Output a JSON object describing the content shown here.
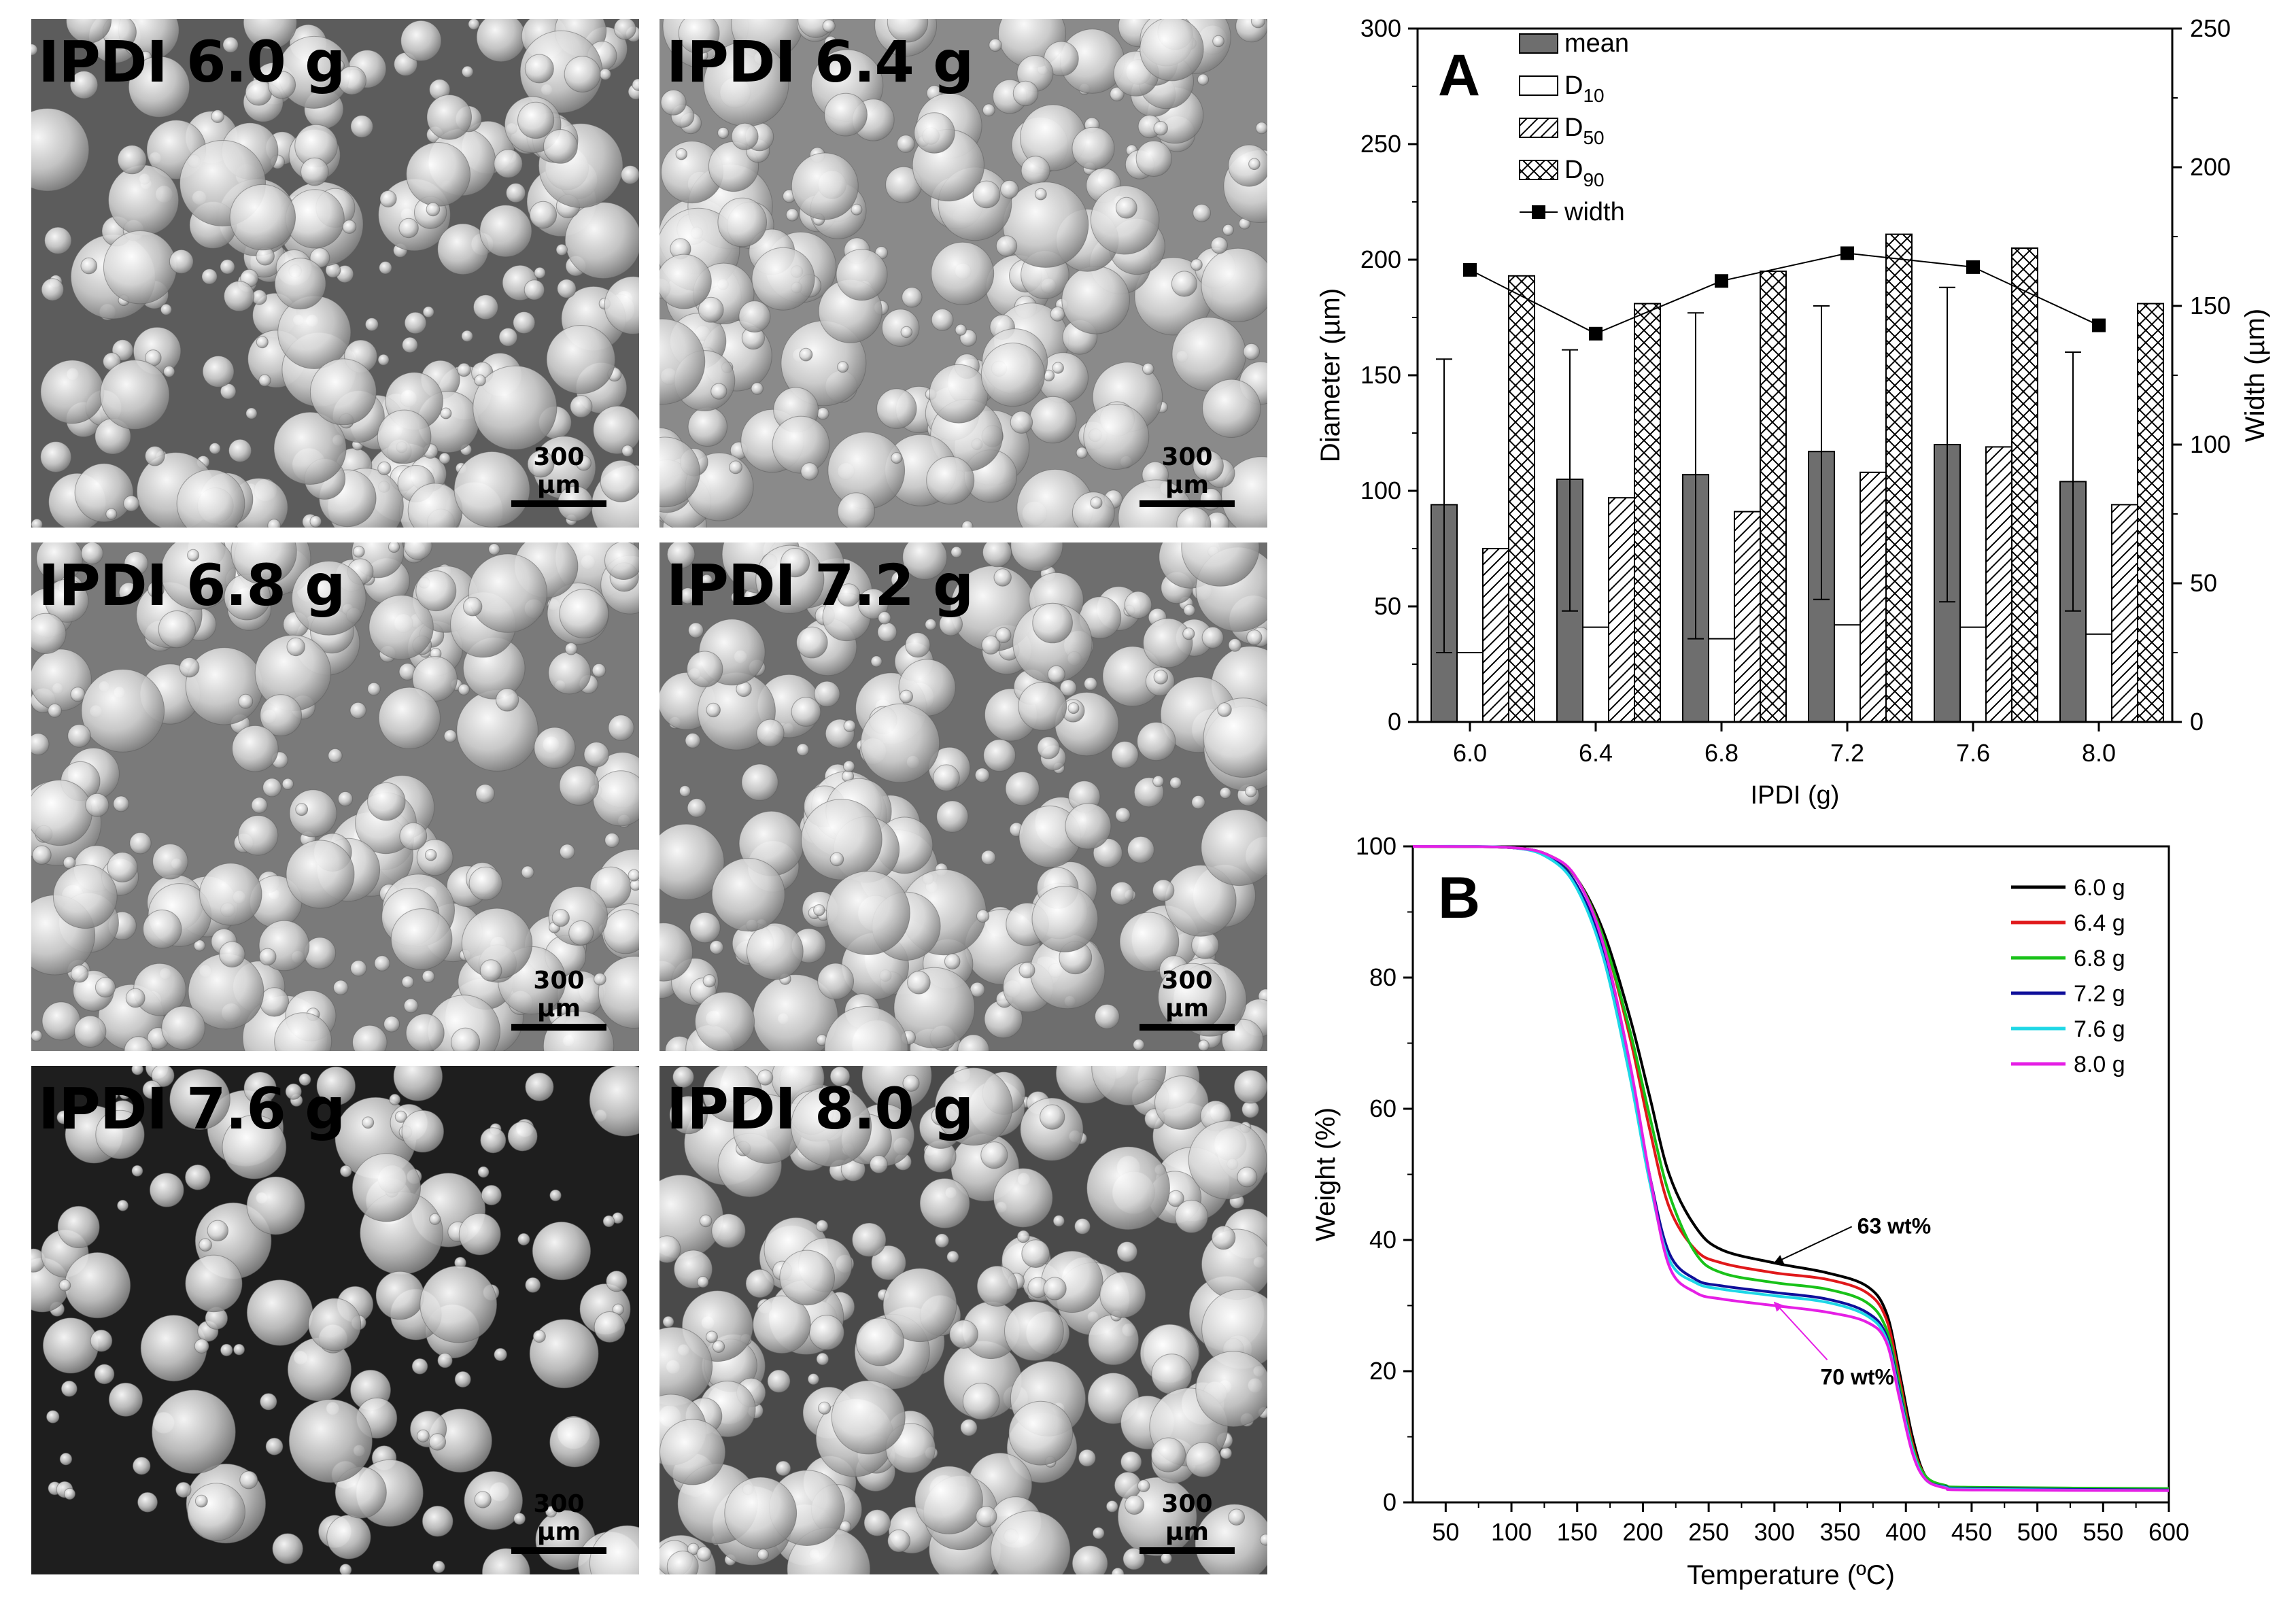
{
  "micrographs": [
    {
      "label": "IPDI 6.0 g",
      "scale": "300 µm",
      "background": "#5c5c5c",
      "seed": 11
    },
    {
      "label": "IPDI 6.4 g",
      "scale": "300 µm",
      "background": "#8a8a8a",
      "seed": 23
    },
    {
      "label": "IPDI 6.8 g",
      "scale": "300 µm",
      "background": "#7a7a7a",
      "seed": 37
    },
    {
      "label": "IPDI 7.2 g",
      "scale": "300 µm",
      "background": "#6e6e6e",
      "seed": 41
    },
    {
      "label": "IPDI 7.6 g",
      "scale": "300 µm",
      "background": "#1e1e1e",
      "seed": 59
    },
    {
      "label": "IPDI 8.0 g",
      "scale": "300 µm",
      "background": "#4a4a4a",
      "seed": 67
    }
  ],
  "chart_data": [
    {
      "panel": "A",
      "type": "bar",
      "xlabel": "IPDI (g)",
      "ylabel": "Diameter (µm)",
      "y2label": "Width (µm)",
      "ylim": [
        0,
        300
      ],
      "y2lim": [
        0,
        250
      ],
      "yticks": [
        "0",
        "50",
        "100",
        "150",
        "200",
        "250",
        "300"
      ],
      "y2ticks": [
        "0",
        "50",
        "100",
        "150",
        "200",
        "250"
      ],
      "categories": [
        "6.0",
        "6.4",
        "6.8",
        "7.2",
        "7.6",
        "8.0"
      ],
      "series": [
        {
          "name": "mean",
          "values": [
            94,
            105,
            107,
            117,
            120,
            104
          ],
          "error_upper": [
            157,
            161,
            177,
            180,
            188,
            160
          ],
          "error_lower": [
            30,
            48,
            36,
            53,
            52,
            48
          ],
          "fill": "#6e6e6e"
        },
        {
          "name": "D10",
          "label_base": "D",
          "label_sub": "10",
          "values": [
            30,
            41,
            36,
            42,
            41,
            38
          ],
          "fill": "none"
        },
        {
          "name": "D50",
          "label_base": "D",
          "label_sub": "50",
          "values": [
            75,
            97,
            91,
            108,
            119,
            94
          ],
          "fill": "hatch"
        },
        {
          "name": "D90",
          "label_base": "D",
          "label_sub": "90",
          "values": [
            193,
            181,
            195,
            211,
            205,
            181
          ],
          "fill": "crosshatch"
        }
      ],
      "line_series": {
        "name": "width",
        "axis": "right",
        "values": [
          163,
          140,
          159,
          169,
          164,
          143
        ]
      }
    },
    {
      "panel": "B",
      "type": "line",
      "xlabel": "Temperature (ºC)",
      "ylabel": "Weight (%)",
      "xlim": [
        25,
        600
      ],
      "ylim": [
        0,
        100
      ],
      "xticks": [
        "50",
        "100",
        "150",
        "200",
        "250",
        "300",
        "350",
        "400",
        "450",
        "500",
        "550",
        "600"
      ],
      "yticks": [
        "0",
        "20",
        "40",
        "60",
        "80",
        "100"
      ],
      "series": [
        {
          "name": "6.0 g",
          "color": "#000000",
          "x": [
            25,
            100,
            130,
            150,
            170,
            190,
            205,
            220,
            240,
            260,
            300,
            340,
            370,
            385,
            395,
            405,
            415,
            430,
            450,
            600
          ],
          "y": [
            100,
            99.8,
            98.5,
            95,
            87,
            74,
            62,
            50,
            42,
            38.5,
            36.5,
            35,
            33,
            29,
            20,
            10,
            4,
            2.5,
            2.2,
            2
          ]
        },
        {
          "name": "6.4 g",
          "color": "#e0191b",
          "x": [
            25,
            100,
            130,
            150,
            170,
            190,
            205,
            220,
            240,
            260,
            300,
            340,
            370,
            385,
            395,
            405,
            415,
            430,
            450,
            600
          ],
          "y": [
            100,
            99.8,
            98.5,
            95,
            86,
            71,
            57,
            45,
            38.5,
            36.5,
            35,
            34,
            32,
            28,
            19,
            9,
            4,
            2.5,
            2.2,
            2
          ]
        },
        {
          "name": "6.8 g",
          "color": "#19c219",
          "x": [
            25,
            100,
            130,
            150,
            170,
            190,
            205,
            220,
            240,
            260,
            300,
            340,
            370,
            385,
            395,
            405,
            415,
            430,
            450,
            600
          ],
          "y": [
            100,
            99.8,
            98.5,
            95,
            86,
            72,
            59,
            47,
            38,
            35,
            33.5,
            32.5,
            30.5,
            26.5,
            18,
            8.5,
            4,
            2.6,
            2.3,
            2.1
          ]
        },
        {
          "name": "7.2 g",
          "color": "#0f0f9a",
          "x": [
            25,
            100,
            130,
            150,
            170,
            190,
            205,
            220,
            240,
            260,
            300,
            340,
            370,
            385,
            395,
            405,
            415,
            430,
            450,
            600
          ],
          "y": [
            100,
            99.8,
            98.2,
            94,
            84,
            66,
            50,
            38,
            34,
            33,
            32,
            31,
            29,
            25.5,
            17,
            8,
            3.5,
            2.4,
            2.1,
            1.9
          ]
        },
        {
          "name": "7.6 g",
          "color": "#1ed7e6",
          "x": [
            25,
            100,
            130,
            150,
            170,
            190,
            205,
            220,
            240,
            260,
            300,
            340,
            370,
            385,
            395,
            405,
            415,
            430,
            450,
            600
          ],
          "y": [
            100,
            99.8,
            98,
            93.5,
            83,
            65,
            49,
            37,
            33.5,
            32.5,
            31.5,
            30.5,
            28.5,
            25,
            16.5,
            8,
            3.5,
            2.3,
            2,
            1.8
          ]
        },
        {
          "name": "8.0 g",
          "color": "#e51fe5",
          "x": [
            25,
            100,
            130,
            150,
            170,
            190,
            205,
            220,
            240,
            260,
            300,
            340,
            370,
            385,
            395,
            405,
            415,
            430,
            450,
            600
          ],
          "y": [
            100,
            99.8,
            98.5,
            95,
            85,
            67,
            50,
            36,
            32,
            31,
            30,
            29,
            27.5,
            24.5,
            16,
            7.5,
            3.5,
            2.2,
            1.9,
            1.8
          ]
        }
      ],
      "annotations": [
        {
          "text": "63 wt%",
          "arrow_to": [
            300,
            36.5
          ],
          "text_at": [
            363,
            41
          ],
          "color": "#000000"
        },
        {
          "text": "70 wt%",
          "arrow_to": [
            300,
            30.5
          ],
          "text_at": [
            335,
            18
          ],
          "color": "#e51fe5"
        }
      ]
    }
  ]
}
